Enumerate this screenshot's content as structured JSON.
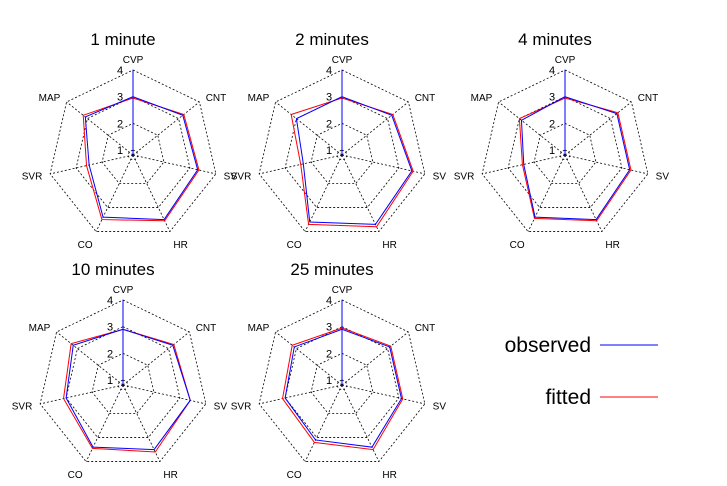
{
  "chart_data": [
    {
      "type": "radar",
      "title": "1 minute",
      "axes": [
        "CVP",
        "CNT",
        "SV",
        "HR",
        "CO",
        "SVR",
        "MAP"
      ],
      "rlim": [
        1,
        4
      ],
      "ticks": [
        1,
        2,
        3,
        4
      ],
      "series": [
        {
          "name": "observed",
          "values": [
            3.0,
            3.2,
            3.3,
            3.5,
            3.4,
            2.5,
            3.1
          ]
        },
        {
          "name": "fitted",
          "values": [
            2.95,
            3.25,
            3.35,
            3.55,
            3.5,
            2.6,
            3.2
          ]
        }
      ]
    },
    {
      "type": "radar",
      "title": "2 minutes",
      "axes": [
        "CVP",
        "CNT",
        "SV",
        "HR",
        "CO",
        "SVR",
        "MAP"
      ],
      "rlim": [
        1,
        4
      ],
      "ticks": [
        1,
        2,
        3,
        4
      ],
      "series": [
        {
          "name": "observed",
          "values": [
            3.0,
            3.2,
            3.5,
            3.7,
            3.6,
            2.3,
            3.0
          ]
        },
        {
          "name": "fitted",
          "values": [
            2.95,
            3.25,
            3.55,
            3.8,
            3.7,
            2.4,
            3.25
          ]
        }
      ]
    },
    {
      "type": "radar",
      "title": "4 minutes",
      "axes": [
        "CVP",
        "CNT",
        "SV",
        "HR",
        "CO",
        "SVR",
        "MAP"
      ],
      "rlim": [
        1,
        4
      ],
      "ticks": [
        1,
        2,
        3,
        4
      ],
      "series": [
        {
          "name": "observed",
          "values": [
            3.0,
            3.3,
            3.3,
            3.5,
            3.4,
            2.4,
            2.9
          ]
        },
        {
          "name": "fitted",
          "values": [
            2.95,
            3.35,
            3.35,
            3.55,
            3.45,
            2.45,
            3.0
          ]
        }
      ]
    },
    {
      "type": "radar",
      "title": "10 minutes",
      "axes": [
        "CVP",
        "CNT",
        "SV",
        "HR",
        "CO",
        "SVR",
        "MAP"
      ],
      "rlim": [
        1,
        4
      ],
      "ticks": [
        1,
        2,
        3,
        4
      ],
      "series": [
        {
          "name": "observed",
          "values": [
            2.9,
            3.2,
            3.4,
            3.5,
            3.4,
            3.0,
            3.2
          ]
        },
        {
          "name": "fitted",
          "values": [
            2.9,
            3.25,
            3.4,
            3.6,
            3.45,
            3.1,
            3.3
          ]
        }
      ]
    },
    {
      "type": "radar",
      "title": "25 minutes",
      "axes": [
        "CVP",
        "CNT",
        "SV",
        "HR",
        "CO",
        "SVR",
        "MAP"
      ],
      "rlim": [
        1,
        4
      ],
      "ticks": [
        1,
        2,
        3,
        4
      ],
      "series": [
        {
          "name": "observed",
          "values": [
            2.9,
            3.1,
            3.1,
            3.4,
            3.1,
            3.0,
            3.1
          ]
        },
        {
          "name": "fitted",
          "values": [
            2.95,
            3.15,
            3.15,
            3.5,
            3.2,
            3.1,
            3.2
          ]
        }
      ]
    }
  ],
  "legend": {
    "placement": "bottom-right",
    "items": [
      {
        "label": "observed",
        "color": "#0000ff"
      },
      {
        "label": "fitted",
        "color": "#ff0000"
      }
    ]
  },
  "colors": {
    "observed": "#0000ff",
    "fitted": "#ff0000",
    "grid": "#000000"
  }
}
